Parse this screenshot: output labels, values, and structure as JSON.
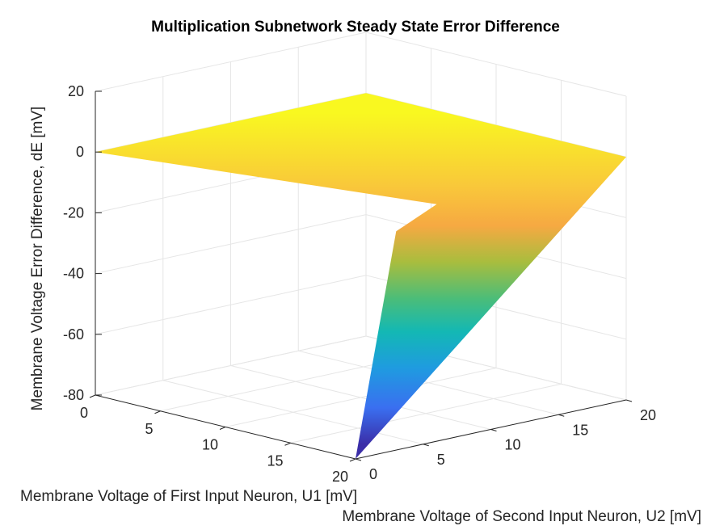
{
  "chart_data": {
    "type": "surface",
    "title": "Multiplication Subnetwork Steady State Error Difference",
    "xlabel": "Membrane Voltage of First Input Neuron, U1 [mV]",
    "ylabel": "Membrane Voltage of Second Input Neuron, U2 [mV]",
    "zlabel": "Membrane Voltage Error Difference, dE [mV]",
    "xlim": [
      0,
      20
    ],
    "ylim": [
      0,
      20
    ],
    "zlim": [
      -80,
      20
    ],
    "x_ticks": [
      "0",
      "5",
      "10",
      "15",
      "20"
    ],
    "y_ticks": [
      "0",
      "5",
      "10",
      "15",
      "20"
    ],
    "z_ticks": [
      "20",
      "0",
      "-20",
      "-40",
      "-60",
      "-80"
    ],
    "grid": true,
    "colormap": "parula",
    "surface_points": [
      {
        "u1": 0,
        "u2": 0,
        "dE": 0
      },
      {
        "u1": 0,
        "u2": 20,
        "dE": 0
      },
      {
        "u1": 20,
        "u2": 20,
        "dE": 0
      },
      {
        "u1": 20,
        "u2": 0,
        "dE": -80
      },
      {
        "u1": 20,
        "u2": 3,
        "dE": -8
      },
      {
        "u1": 20,
        "u2": 6,
        "dE": -2
      }
    ]
  }
}
